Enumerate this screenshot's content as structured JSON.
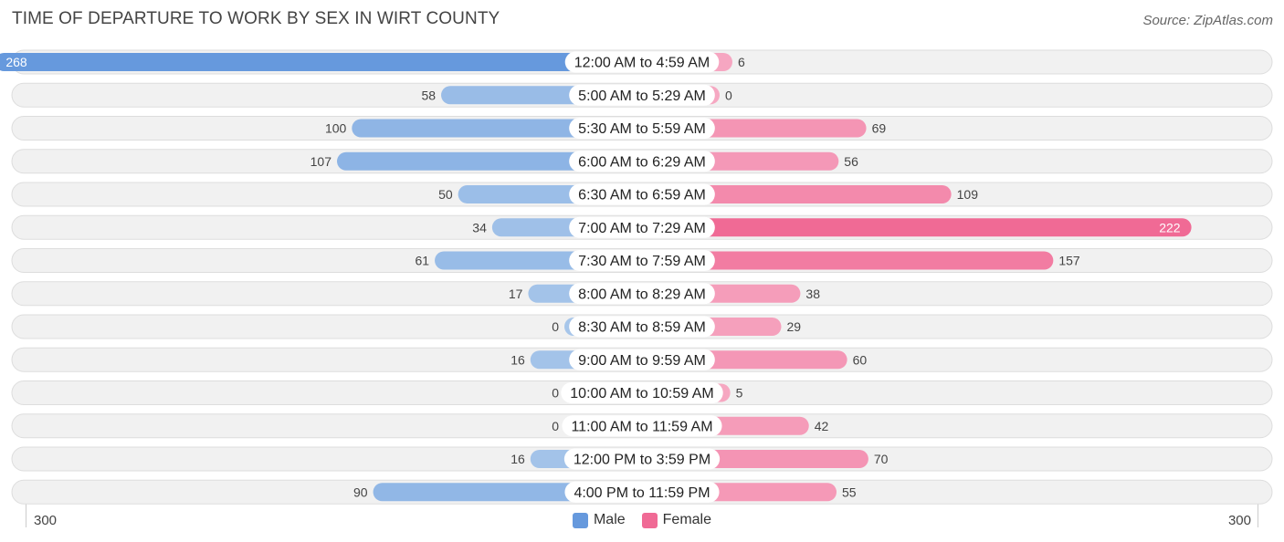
{
  "title": "TIME OF DEPARTURE TO WORK BY SEX IN WIRT COUNTY",
  "source": "Source: ZipAtlas.com",
  "colors": {
    "male_light": "#a7c6ea",
    "male_dark": "#6699dd",
    "female_light": "#f6a8c2",
    "female_dark": "#f06a95",
    "row_bg": "#f1f1f1",
    "row_border": "#dddddd"
  },
  "legend": {
    "male": "Male",
    "female": "Female"
  },
  "axis": {
    "left_label": "300",
    "right_label": "300"
  },
  "chart_data": {
    "type": "bar",
    "orientation": "horizontal-diverging",
    "title": "TIME OF DEPARTURE TO WORK BY SEX IN WIRT COUNTY",
    "xlim": [
      -300,
      300
    ],
    "categories": [
      "12:00 AM to 4:59 AM",
      "5:00 AM to 5:29 AM",
      "5:30 AM to 5:59 AM",
      "6:00 AM to 6:29 AM",
      "6:30 AM to 6:59 AM",
      "7:00 AM to 7:29 AM",
      "7:30 AM to 7:59 AM",
      "8:00 AM to 8:29 AM",
      "8:30 AM to 8:59 AM",
      "9:00 AM to 9:59 AM",
      "10:00 AM to 10:59 AM",
      "11:00 AM to 11:59 AM",
      "12:00 PM to 3:59 PM",
      "4:00 PM to 11:59 PM"
    ],
    "series": [
      {
        "name": "Male",
        "values": [
          268,
          58,
          100,
          107,
          50,
          34,
          61,
          17,
          0,
          16,
          0,
          0,
          16,
          90
        ]
      },
      {
        "name": "Female",
        "values": [
          6,
          0,
          69,
          56,
          109,
          222,
          157,
          38,
          29,
          60,
          5,
          42,
          70,
          55
        ]
      }
    ]
  }
}
